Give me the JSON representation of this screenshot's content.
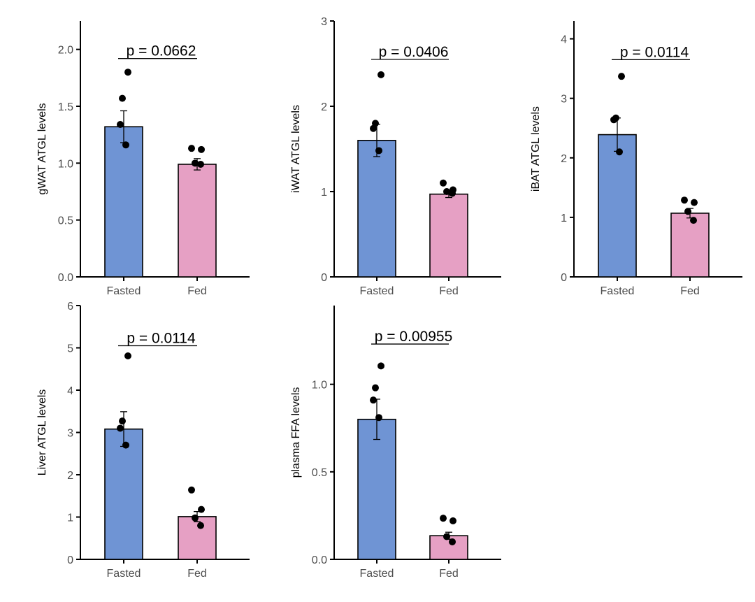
{
  "figure": {
    "description_free": true
  },
  "colors": {
    "Fasted": "#6f94d4",
    "Fed": "#e6a0c4",
    "point": "#000000",
    "axis": "#000000"
  },
  "chart_data": [
    {
      "type": "bar",
      "id": "gwat",
      "ylabel": "gWAT ATGL levels",
      "categories": [
        "Fasted",
        "Fed"
      ],
      "values": [
        1.32,
        0.99
      ],
      "errors": [
        0.14,
        0.05
      ],
      "points": [
        [
          1.8,
          1.57,
          1.34,
          1.16
        ],
        [
          1.13,
          1.12,
          1.0,
          0.99
        ]
      ],
      "ylim": [
        0,
        2.25
      ],
      "yticks": [
        0.0,
        0.5,
        1.0,
        1.5,
        2.0
      ],
      "ytick_labels": [
        "0.0",
        "0.5",
        "1.0",
        "1.5",
        "2.0"
      ],
      "pvalue": "p = 0.0662",
      "bracket_y": 1.92
    },
    {
      "type": "bar",
      "id": "iwat",
      "ylabel": "iWAT ATGL levels",
      "categories": [
        "Fasted",
        "Fed"
      ],
      "values": [
        1.6,
        0.97
      ],
      "errors": [
        0.19,
        0.04
      ],
      "points": [
        [
          2.37,
          1.8,
          1.74,
          1.48
        ],
        [
          1.1,
          1.02,
          1.0,
          0.98
        ]
      ],
      "ylim": [
        0,
        3
      ],
      "yticks": [
        0,
        1,
        2,
        3
      ],
      "ytick_labels": [
        "0",
        "1",
        "2",
        "3"
      ],
      "pvalue": "p = 0.0406",
      "bracket_y": 2.55
    },
    {
      "type": "bar",
      "id": "ibat",
      "ylabel": "iBAT ATGL levels",
      "categories": [
        "Fasted",
        "Fed"
      ],
      "values": [
        2.39,
        1.07
      ],
      "errors": [
        0.28,
        0.08
      ],
      "points": [
        [
          3.37,
          2.67,
          2.64,
          2.1
        ],
        [
          1.29,
          1.25,
          1.1,
          0.95
        ]
      ],
      "ylim": [
        0,
        4.3
      ],
      "yticks": [
        0,
        1,
        2,
        3,
        4
      ],
      "ytick_labels": [
        "0",
        "1",
        "2",
        "3",
        "4"
      ],
      "pvalue": "p = 0.0114",
      "bracket_y": 3.65
    },
    {
      "type": "bar",
      "id": "liver",
      "ylabel": "Liver ATGL levels",
      "categories": [
        "Fasted",
        "Fed"
      ],
      "values": [
        3.08,
        1.01
      ],
      "errors": [
        0.41,
        0.12
      ],
      "points": [
        [
          4.81,
          3.27,
          3.1,
          2.7
        ],
        [
          1.64,
          1.18,
          0.98,
          0.8
        ]
      ],
      "ylim": [
        0,
        6
      ],
      "yticks": [
        0,
        1,
        2,
        3,
        4,
        5,
        6
      ],
      "ytick_labels": [
        "0",
        "1",
        "2",
        "3",
        "4",
        "5",
        "6"
      ],
      "pvalue": "p = 0.0114",
      "bracket_y": 5.05
    },
    {
      "type": "bar",
      "id": "plasma",
      "ylabel": "plasma FFA levels",
      "categories": [
        "Fasted",
        "Fed"
      ],
      "values": [
        0.8,
        0.135
      ],
      "errors": [
        0.115,
        0.02
      ],
      "points": [
        [
          1.105,
          0.98,
          0.91,
          0.81
        ],
        [
          0.235,
          0.22,
          0.13,
          0.1
        ]
      ],
      "ylim": [
        0,
        1.45
      ],
      "yticks": [
        0.0,
        0.5,
        1.0
      ],
      "ytick_labels": [
        "0.0",
        "0.5",
        "1.0"
      ],
      "pvalue": "p = 0.00955",
      "bracket_y": 1.23
    }
  ]
}
